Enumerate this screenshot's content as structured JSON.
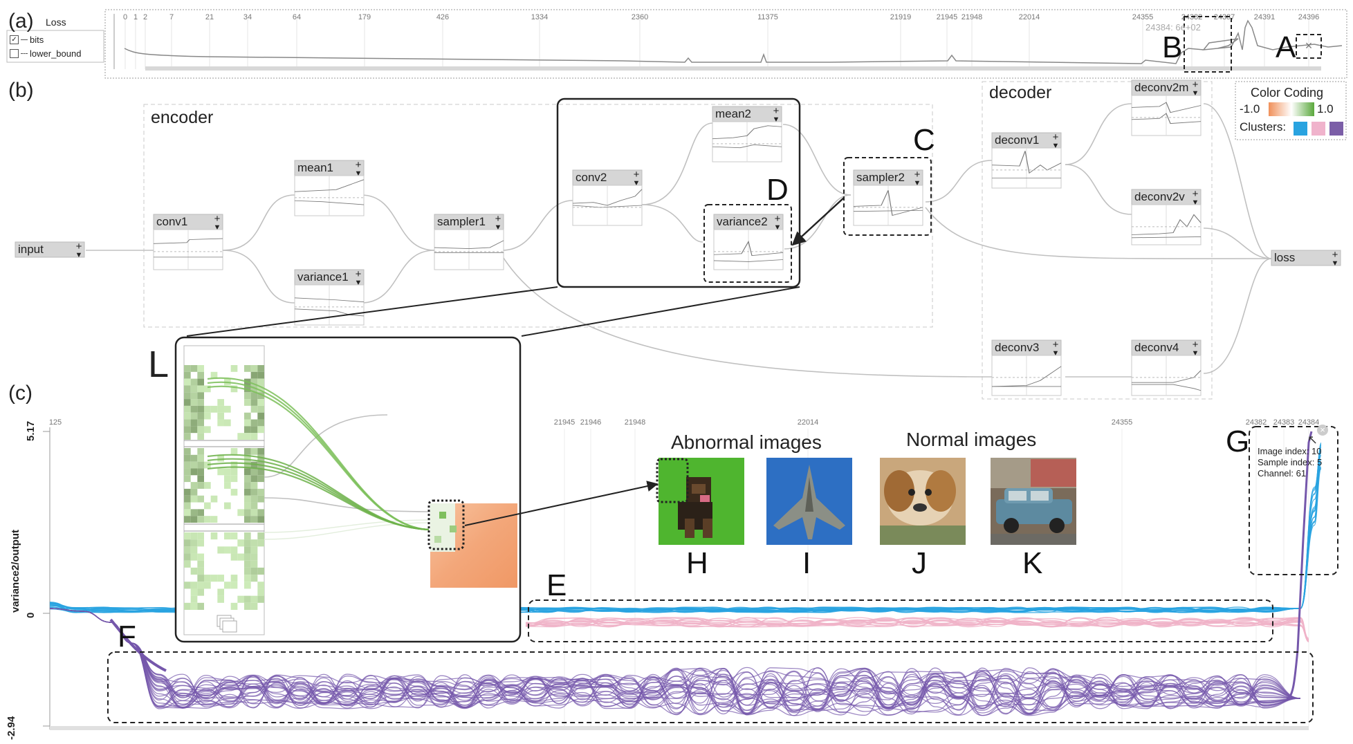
{
  "panel_labels": {
    "a": "(a)",
    "b": "(b)",
    "c": "(c)"
  },
  "loss_panel": {
    "title": "Loss",
    "legend": [
      {
        "label": "bits",
        "checked": true
      },
      {
        "label": "lower_bound",
        "checked": false
      }
    ],
    "ticks": [
      "0",
      "1",
      "2",
      "7",
      "21",
      "34",
      "64",
      "179",
      "426",
      "1334",
      "2360",
      "11375",
      "21919",
      "21945",
      "21948",
      "22014",
      "24355",
      "24382",
      "24387",
      "24391",
      "24396"
    ],
    "hover_readout": "24384: 6e+02"
  },
  "graph": {
    "groups": {
      "encoder": "encoder",
      "decoder": "decoder"
    },
    "nodes": {
      "input": "input",
      "conv1": "conv1",
      "mean1": "mean1",
      "variance1": "variance1",
      "sampler1": "sampler1",
      "conv2": "conv2",
      "mean2": "mean2",
      "variance2": "variance2",
      "sampler2": "sampler2",
      "deconv1": "deconv1",
      "deconv2m": "deconv2m",
      "deconv2v": "deconv2v",
      "deconv3": "deconv3",
      "deconv4": "deconv4",
      "loss": "loss"
    },
    "expand_symbol": "+",
    "menu_symbol": "▼"
  },
  "color_coding": {
    "title": "Color Coding",
    "min": "-1.0",
    "max": "1.0",
    "clusters_label": "Clusters:",
    "gradient_low": "#f0905a",
    "gradient_high": "#5aa83c",
    "cluster_colors": [
      "#29a3e0",
      "#f0b3cc",
      "#7b5ea7"
    ]
  },
  "zoom_inset": {
    "nodes": {
      "conv2": "conv2",
      "mean2": "mean2",
      "variance2": "variance2"
    }
  },
  "images": {
    "abnormal_title": "Abnormal images",
    "normal_title": "Normal images",
    "labels": [
      "H",
      "I",
      "J",
      "K"
    ]
  },
  "activation_panel": {
    "y_axis_label": "variance2/output",
    "y_ticks": [
      "5.17",
      "0",
      "-2.94"
    ],
    "x_ticks": [
      "125",
      "21945",
      "21946",
      "21948",
      "22014",
      "24355",
      "24382",
      "24383",
      "24384"
    ],
    "tooltip": [
      "Image index: 10",
      "Sample index: 5",
      "Channel: 61"
    ],
    "cluster_colors": {
      "blue": "#29a3e0",
      "pink": "#efb2c8",
      "purple": "#7557ab"
    }
  },
  "annotation_letters": {
    "A": "A",
    "B": "B",
    "C": "C",
    "D": "D",
    "E": "E",
    "F": "F",
    "G": "G",
    "L": "L"
  }
}
